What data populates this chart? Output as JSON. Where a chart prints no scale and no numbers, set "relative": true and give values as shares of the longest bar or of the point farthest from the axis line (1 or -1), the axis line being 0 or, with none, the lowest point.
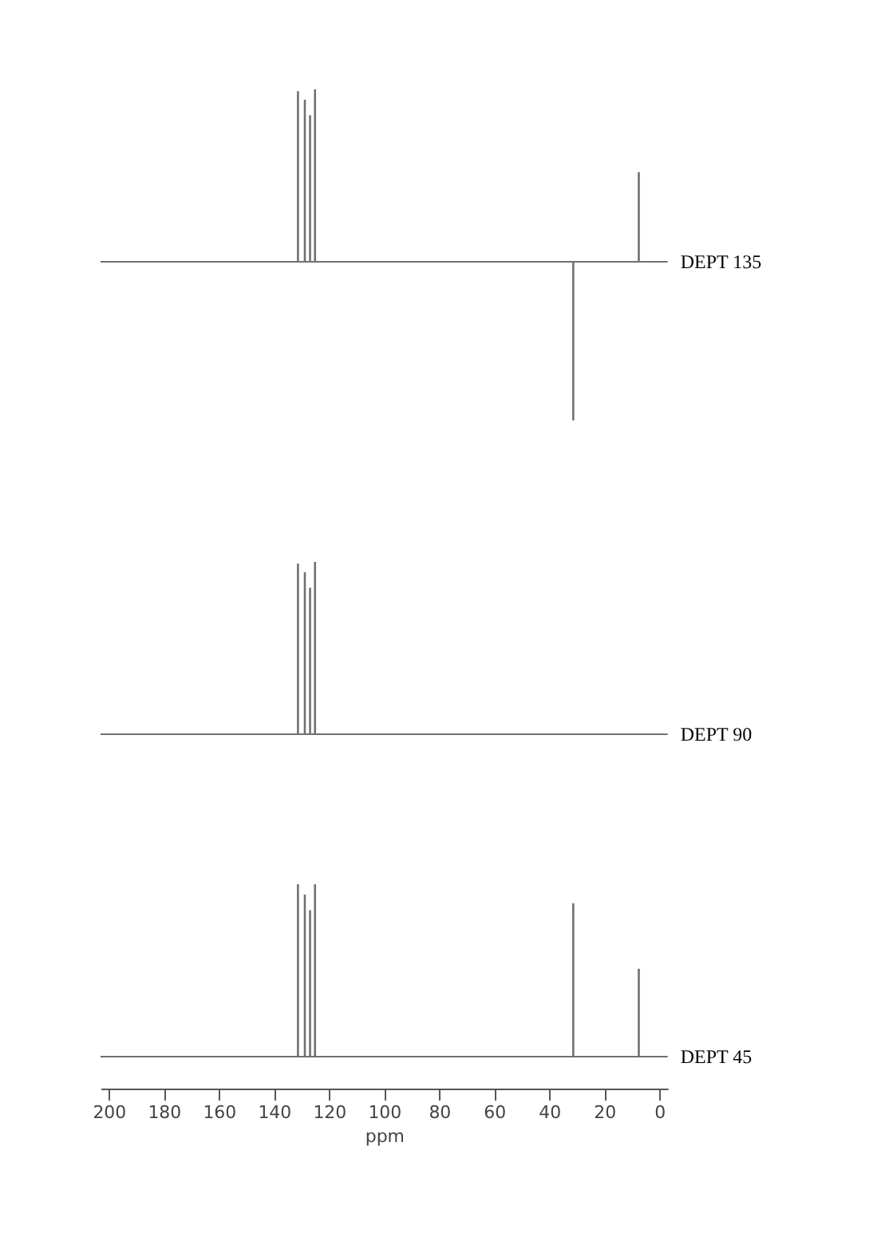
{
  "chart_data": [
    {
      "type": "bar",
      "relative": true,
      "annotations": [
        "DEPT 135"
      ],
      "xlim": [
        203,
        -3
      ],
      "tick_labels": false,
      "x": [
        131.3,
        128.8,
        126.9,
        125.1,
        31.3,
        7.5
      ],
      "series": [
        {
          "color": "#707070",
          "values": [
            0.99,
            0.94,
            0.85,
            1,
            -0.92,
            0.52
          ]
        }
      ]
    },
    {
      "type": "bar",
      "relative": true,
      "annotations": [
        "DEPT 90"
      ],
      "xlim": [
        203,
        -3
      ],
      "tick_labels": false,
      "x": [
        131.3,
        128.8,
        126.9,
        125.1
      ],
      "series": [
        {
          "color": "#707070",
          "values": [
            0.99,
            0.94,
            0.85,
            1
          ]
        }
      ]
    },
    {
      "type": "bar",
      "relative": true,
      "annotations": [
        "DEPT 45"
      ],
      "xlabel": "ppm",
      "xlim": [
        203,
        -3
      ],
      "tick_labels": "x",
      "x": [
        131.3,
        128.8,
        126.9,
        125.1,
        31.3,
        7.5
      ],
      "xticks": [
        200,
        180,
        160,
        140,
        120,
        100,
        80,
        60,
        40,
        20,
        0
      ],
      "series": [
        {
          "color": "#707070",
          "values": [
            1,
            0.94,
            0.85,
            1,
            0.89,
            0.51
          ]
        }
      ]
    }
  ]
}
